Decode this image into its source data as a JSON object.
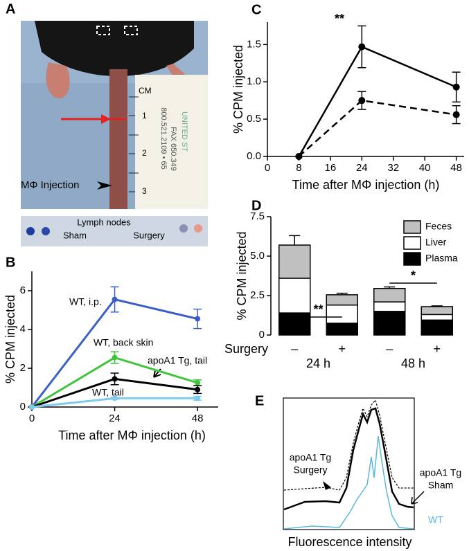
{
  "panel_a": {
    "label": "A",
    "injection": "MΦ Injection",
    "ruler": [
      "CM",
      "1",
      "2",
      "3"
    ],
    "ruler_print": [
      "800.521.2109 • 65",
      "FAX 650.349",
      "UNITED ST"
    ],
    "strip_title": "Lymph nodes",
    "strip_labels": [
      "Sham",
      "Surgery"
    ]
  },
  "chart_data": [
    {
      "type": "line",
      "panel": "B",
      "xlabel": "Time after MΦ injection (h)",
      "ylabel": "% CPM injected",
      "x": [
        0,
        24,
        48
      ],
      "xlim": [
        0,
        54
      ],
      "xticks": [
        0,
        24,
        48
      ],
      "ylim": [
        0,
        7
      ],
      "yticks": [
        0,
        2,
        4,
        6
      ],
      "series": [
        {
          "name": "WT, i.p.",
          "color": "#3a5fc8",
          "values": [
            0,
            5.55,
            4.55
          ],
          "errors": [
            0,
            0.65,
            0.5
          ]
        },
        {
          "name": "WT, back skin",
          "color": "#3fc43a",
          "values": [
            0,
            2.55,
            1.25
          ],
          "errors": [
            0,
            0.3,
            0.15
          ]
        },
        {
          "name": "apoA1 Tg, tail",
          "color": "#000000",
          "values": [
            0,
            1.45,
            0.9
          ],
          "errors": [
            0,
            0.3,
            0.2
          ]
        },
        {
          "name": "WT, tail",
          "color": "#7ecbef",
          "values": [
            0,
            0.45,
            0.45
          ],
          "errors": [
            0,
            0.05,
            0.1
          ]
        }
      ]
    },
    {
      "type": "line",
      "panel": "C",
      "xlabel": "Time after MΦ injection (h)",
      "ylabel": "% CPM injected",
      "x": [
        8,
        24,
        48
      ],
      "xlim": [
        0,
        50
      ],
      "xticks": [
        0,
        8,
        16,
        24,
        32,
        40,
        48
      ],
      "ylim": [
        0,
        1.8
      ],
      "yticks": [
        {
          "value": 0,
          "label": "0.0"
        },
        0.5,
        {
          "value": 1,
          "label": "1.0"
        },
        1.5
      ],
      "annotations": [
        "**"
      ],
      "series": [
        {
          "color": "#000000",
          "style": "solid",
          "values": [
            0,
            1.47,
            0.93
          ],
          "errors": [
            0,
            0.28,
            0.2
          ]
        },
        {
          "color": "#000000",
          "style": "dashed",
          "values": [
            0,
            0.75,
            0.56
          ],
          "errors": [
            0,
            0.12,
            0.12
          ]
        }
      ]
    },
    {
      "type": "stacked_bar",
      "panel": "D",
      "ylabel": "% CPM injected",
      "xlabel": "Surgery",
      "categories": [
        "–",
        "+",
        "–",
        "+"
      ],
      "groups": [
        "24 h",
        "48 h"
      ],
      "ylim": [
        0,
        7.5
      ],
      "yticks": [
        0,
        2.5,
        {
          "value": 5,
          "label": "5.0"
        },
        7.5
      ],
      "annotations": [
        "**",
        "*"
      ],
      "series": [
        {
          "name": "Plasma",
          "color": "#000000",
          "values": [
            1.4,
            0.75,
            1.5,
            0.95
          ]
        },
        {
          "name": "Liver",
          "color": "#ffffff",
          "values": [
            2.2,
            1.15,
            0.6,
            0.35
          ]
        },
        {
          "name": "Feces",
          "color": "#c0c0c0",
          "values": [
            2.1,
            0.65,
            0.85,
            0.5
          ],
          "errors": [
            0.6,
            0.1,
            0.1,
            0.05
          ]
        }
      ]
    }
  ],
  "panel_e": {
    "label": "E",
    "xlabel": "Fluorescence intensity",
    "annotations": [
      "apoA1 Tg",
      "Surgery",
      "apoA1 Tg",
      "Sham",
      "WT"
    ]
  }
}
